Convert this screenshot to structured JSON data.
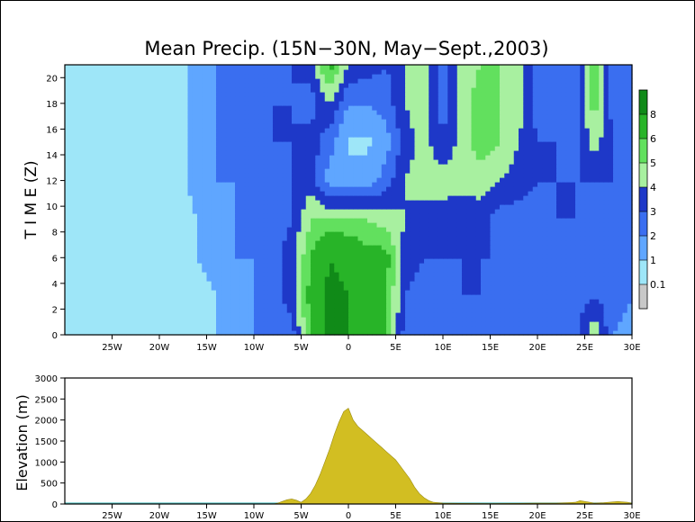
{
  "title": "Mean Precip. (15N−30N, May−Sept.,2003)",
  "colors": {
    "cbar": [
      "#c8c8c8",
      "#9ee6f8",
      "#5fa6ff",
      "#3a6ef0",
      "#1e38c8",
      "#a8f0a0",
      "#62e05e",
      "#28b428",
      "#108a18"
    ],
    "terrain": "#d2be22",
    "terrain_edge": "#9a8a10",
    "sea": "#54c0c0"
  },
  "chart_data": [
    {
      "type": "heatmap",
      "title": "Mean Precip. (15N−30N, May−Sept.,2003)",
      "ylabel": "T I M E (Z)",
      "xlim": [
        -30,
        30
      ],
      "ylim": [
        0,
        21
      ],
      "x_ticks": [
        -25,
        -20,
        -15,
        -10,
        -5,
        0,
        5,
        10,
        15,
        20,
        25,
        30
      ],
      "x_tick_labels": [
        "25W",
        "20W",
        "15W",
        "10W",
        "5W",
        "0",
        "5E",
        "10E",
        "15E",
        "20E",
        "25E",
        "30E"
      ],
      "y_ticks": [
        0,
        2,
        4,
        6,
        8,
        10,
        12,
        14,
        16,
        18,
        20
      ],
      "y_tick_labels": [
        "0",
        "2",
        "4",
        "6",
        "8",
        "10",
        "12",
        "14",
        "16",
        "18",
        "20"
      ],
      "levels": [
        0.1,
        1,
        2,
        3,
        4,
        5,
        6,
        8
      ],
      "level_labels": [
        "0.1",
        "1",
        "2",
        "3",
        "4",
        "5",
        "6",
        "8"
      ],
      "x": [
        -30,
        -28,
        -26,
        -24,
        -22,
        -20,
        -18,
        -16,
        -14,
        -12,
        -10,
        -8,
        -6,
        -4,
        -2,
        0,
        2,
        4,
        6,
        8,
        10,
        12,
        14,
        16,
        18,
        20,
        22,
        24,
        26,
        28,
        30
      ],
      "y": [
        0,
        3,
        6,
        9,
        12,
        15,
        18,
        21
      ],
      "z": [
        [
          0.5,
          0.5,
          0.5,
          0.5,
          0.5,
          0.5,
          0.5,
          0.5,
          1.0,
          1.5,
          2.0,
          2.0,
          2.5,
          6.0,
          8.5,
          8.0,
          7.0,
          6.0,
          2.5,
          2.5,
          2.5,
          3.0,
          2.5,
          2.0,
          2.0,
          2.5,
          2.5,
          2.5,
          5.0,
          2.0,
          1.5
        ],
        [
          0.5,
          0.5,
          0.5,
          0.5,
          0.5,
          0.5,
          0.5,
          0.5,
          1.0,
          1.5,
          2.0,
          2.5,
          3.5,
          6.5,
          8.5,
          8.0,
          7.0,
          6.0,
          3.0,
          2.5,
          2.5,
          3.0,
          3.0,
          2.5,
          2.0,
          2.5,
          2.5,
          2.5,
          3.0,
          2.5,
          2.0
        ],
        [
          0.5,
          0.5,
          0.5,
          0.5,
          0.5,
          0.5,
          0.5,
          1.0,
          1.5,
          2.0,
          2.0,
          2.5,
          3.5,
          6.0,
          8.0,
          7.5,
          6.5,
          6.5,
          3.5,
          3.0,
          3.0,
          3.0,
          3.0,
          3.0,
          2.5,
          2.0,
          2.5,
          2.5,
          2.5,
          2.5,
          2.0
        ],
        [
          0.5,
          0.5,
          0.5,
          0.5,
          0.5,
          0.5,
          0.5,
          1.0,
          1.5,
          2.0,
          2.5,
          2.5,
          3.0,
          5.0,
          5.0,
          5.0,
          5.0,
          4.5,
          4.0,
          3.5,
          3.5,
          3.0,
          3.5,
          2.5,
          2.5,
          2.5,
          3.0,
          3.0,
          2.5,
          2.5,
          2.5
        ],
        [
          0.5,
          0.5,
          0.5,
          0.5,
          0.5,
          0.5,
          0.5,
          1.5,
          2.0,
          2.0,
          2.5,
          2.5,
          3.0,
          3.5,
          1.5,
          1.5,
          1.5,
          2.5,
          4.0,
          4.5,
          4.5,
          4.5,
          4.5,
          4.0,
          3.5,
          3.0,
          3.0,
          3.0,
          3.0,
          3.0,
          3.0
        ],
        [
          0.5,
          0.5,
          0.5,
          0.5,
          0.5,
          0.5,
          0.5,
          1.5,
          2.0,
          2.5,
          2.5,
          3.0,
          3.0,
          3.5,
          2.5,
          0.8,
          0.8,
          1.5,
          3.5,
          4.5,
          3.0,
          4.5,
          5.5,
          5.0,
          4.0,
          3.0,
          3.0,
          2.5,
          4.5,
          3.0,
          2.5
        ],
        [
          0.5,
          0.5,
          0.5,
          0.5,
          0.5,
          0.5,
          0.5,
          1.5,
          2.0,
          2.0,
          2.5,
          3.0,
          3.0,
          2.5,
          4.0,
          2.0,
          2.0,
          2.5,
          4.0,
          4.5,
          2.5,
          4.5,
          5.5,
          5.0,
          4.5,
          2.5,
          2.5,
          2.5,
          5.5,
          2.5,
          2.5
        ],
        [
          0.5,
          0.5,
          0.5,
          0.5,
          0.5,
          0.5,
          0.5,
          1.5,
          2.0,
          2.0,
          2.5,
          2.5,
          3.0,
          3.5,
          6.5,
          4.0,
          3.5,
          3.0,
          4.0,
          4.5,
          2.5,
          4.5,
          5.0,
          5.0,
          4.5,
          2.5,
          2.5,
          2.5,
          6.0,
          2.5,
          2.5
        ]
      ]
    },
    {
      "type": "area",
      "ylabel": "Elevation (m)",
      "xlim": [
        -30,
        30
      ],
      "ylim": [
        0,
        3000
      ],
      "x_ticks": [
        -25,
        -20,
        -15,
        -10,
        -5,
        0,
        5,
        10,
        15,
        20,
        25,
        30
      ],
      "x_tick_labels": [
        "25W",
        "20W",
        "15W",
        "10W",
        "5W",
        "0",
        "5E",
        "10E",
        "15E",
        "20E",
        "25E",
        "30E"
      ],
      "y_ticks": [
        0,
        500,
        1000,
        1500,
        2000,
        2500,
        3000
      ],
      "y_tick_labels": [
        "0",
        "500",
        "1000",
        "1500",
        "2000",
        "2500",
        "3000"
      ],
      "x": [
        -30,
        -8,
        -7.5,
        -7,
        -6.5,
        -6,
        -5.5,
        -5,
        -4.5,
        -4,
        -3.5,
        -3,
        -2.5,
        -2,
        -1.5,
        -1,
        -0.5,
        0,
        0.5,
        1,
        1.5,
        2,
        2.5,
        3,
        3.5,
        4,
        4.5,
        5,
        5.5,
        6,
        6.5,
        7,
        7.5,
        8,
        8.5,
        9,
        10,
        12,
        15,
        18,
        20,
        22,
        24,
        24.5,
        25,
        25.5,
        26,
        27,
        28,
        28.5,
        29,
        29.5,
        30
      ],
      "values": [
        0,
        0,
        20,
        60,
        100,
        120,
        90,
        40,
        120,
        250,
        450,
        700,
        1000,
        1300,
        1650,
        1950,
        2200,
        2280,
        2000,
        1850,
        1750,
        1650,
        1550,
        1450,
        1350,
        1250,
        1150,
        1050,
        900,
        750,
        600,
        400,
        250,
        150,
        80,
        40,
        20,
        15,
        10,
        15,
        20,
        20,
        40,
        80,
        60,
        40,
        20,
        30,
        50,
        60,
        50,
        40,
        20
      ]
    }
  ]
}
